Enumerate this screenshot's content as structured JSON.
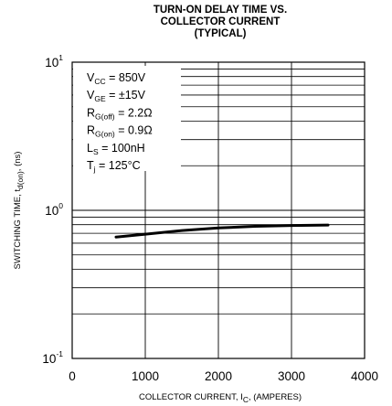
{
  "chart_data": {
    "type": "line",
    "title_lines": [
      "TURN-ON DELAY TIME VS.",
      "COLLECTOR CURRENT",
      "(TYPICAL)"
    ],
    "xlabel": {
      "main": "COLLECTOR CURRENT, I",
      "sub": "C",
      "tail": ", (AMPERES)"
    },
    "ylabel": {
      "main": "SWITCHING TIME, t",
      "sub": "d(on)",
      "tail": ", (ns)"
    },
    "xlim": [
      0,
      4000
    ],
    "ylim": [
      0.1,
      10
    ],
    "y_scale": "log",
    "grid": true,
    "x_ticks": [
      {
        "value": 0,
        "label": "0"
      },
      {
        "value": 1000,
        "label": "1000"
      },
      {
        "value": 2000,
        "label": "2000"
      },
      {
        "value": 3000,
        "label": "3000"
      },
      {
        "value": 4000,
        "label": "4000"
      }
    ],
    "y_ticks": [
      {
        "value": 10,
        "base": "10",
        "exp": "1"
      },
      {
        "value": 1,
        "base": "10",
        "exp": "0"
      },
      {
        "value": 0.1,
        "base": "10",
        "exp": "-1"
      }
    ],
    "conditions": [
      {
        "pre": "V",
        "sub": "CC",
        "post": " = 850V"
      },
      {
        "pre": "V",
        "sub": "GE",
        "post": " = ±15V"
      },
      {
        "pre": "R",
        "sub": "G(off)",
        "post": " = 2.2Ω"
      },
      {
        "pre": "R",
        "sub": "G(on)",
        "post": " = 0.9Ω"
      },
      {
        "pre": "L",
        "sub": "S",
        "post": " = 100nH"
      },
      {
        "pre": "T",
        "sub": "j",
        "post": " = 125°C"
      }
    ],
    "series": [
      {
        "x": [
          600,
          1000,
          1500,
          2000,
          2500,
          3000,
          3500
        ],
        "y": [
          0.66,
          0.69,
          0.73,
          0.76,
          0.78,
          0.79,
          0.795
        ]
      }
    ]
  }
}
